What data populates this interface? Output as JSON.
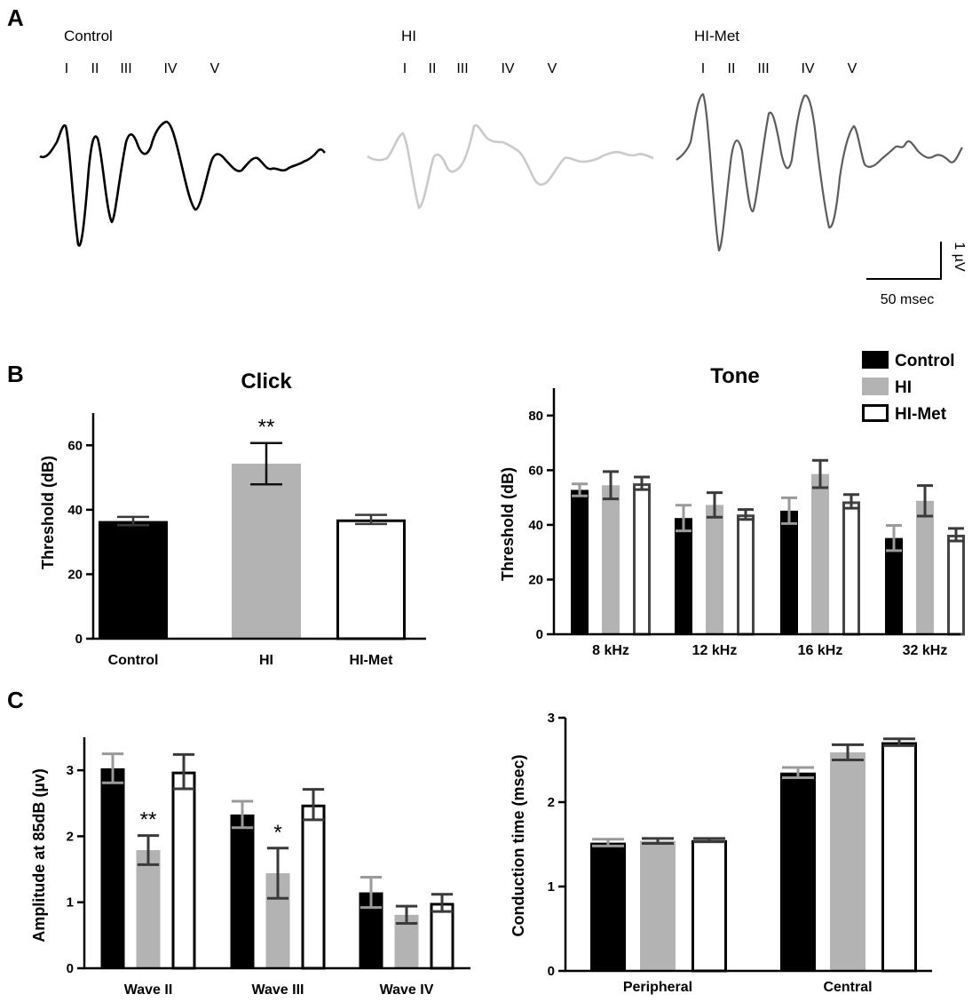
{
  "panels": {
    "a": "A",
    "b": "B",
    "c": "C"
  },
  "colors": {
    "control": "#000000",
    "hi": "#b3b3b3",
    "hi_met_edge": "#000000",
    "hi_met_edge_tone": "#454545",
    "err_dark": "#3a3a3a",
    "err_grey": "#9a9a9a"
  },
  "legend": [
    "Control",
    "HI",
    "HI-Met"
  ],
  "waveforms": {
    "wave_labels": [
      "I",
      "II",
      "III",
      "IV",
      "V"
    ],
    "traces": [
      {
        "name": "Control",
        "color": "#000000"
      },
      {
        "name": "HI",
        "color": "#c8c8c8"
      },
      {
        "name": "HI-Met",
        "color": "#5a5a5a"
      }
    ],
    "scale_bar": {
      "y_label": "1 µV",
      "x_label": "50 msec"
    }
  },
  "chart_data": [
    {
      "id": "click",
      "type": "bar",
      "title": "Click",
      "ylabel": "Threshold (dB)",
      "ylim": [
        0,
        70
      ],
      "yticks": [
        0,
        20,
        40,
        60
      ],
      "categories": [
        "Control",
        "HI",
        "HI-Met"
      ],
      "values": [
        36.5,
        54.3,
        37.0
      ],
      "errors": [
        1.3,
        6.4,
        1.4
      ],
      "annotations": [
        "",
        "**",
        ""
      ]
    },
    {
      "id": "tone",
      "type": "bar",
      "title": "Tone",
      "ylabel": "Threshold (dB)",
      "ylim": [
        0,
        90
      ],
      "yticks": [
        0,
        20,
        40,
        60,
        80
      ],
      "categories": [
        "8 kHz",
        "12 kHz",
        "16 kHz",
        "32 kHz"
      ],
      "series": [
        {
          "name": "Control",
          "values": [
            52.8,
            42.5,
            45.2,
            35.2
          ],
          "errors": [
            2.2,
            4.7,
            4.7,
            4.6
          ]
        },
        {
          "name": "HI",
          "values": [
            54.5,
            47.3,
            58.6,
            48.8
          ],
          "errors": [
            5.0,
            4.5,
            5.0,
            5.6
          ]
        },
        {
          "name": "HI-Met",
          "values": [
            55.2,
            43.8,
            48.6,
            36.4
          ],
          "errors": [
            2.3,
            1.8,
            2.5,
            2.3
          ]
        }
      ]
    },
    {
      "id": "amplitude",
      "type": "bar",
      "title": "",
      "ylabel": "Amplitude at 85dB (µv)",
      "ylim": [
        0,
        3.5
      ],
      "yticks": [
        0,
        1,
        2,
        3
      ],
      "categories": [
        "Wave II",
        "Wave III",
        "Wave IV"
      ],
      "series": [
        {
          "name": "Control",
          "values": [
            3.03,
            2.33,
            1.15
          ],
          "errors": [
            0.22,
            0.2,
            0.23
          ]
        },
        {
          "name": "HI",
          "values": [
            1.79,
            1.44,
            0.81
          ],
          "errors": [
            0.22,
            0.38,
            0.13
          ]
        },
        {
          "name": "HI-Met",
          "values": [
            2.98,
            2.48,
            0.99
          ],
          "errors": [
            0.26,
            0.23,
            0.13
          ]
        }
      ],
      "annotations": [
        [
          "",
          "**",
          ""
        ],
        [
          "",
          "*",
          ""
        ],
        [
          "",
          "",
          ""
        ]
      ]
    },
    {
      "id": "conduction",
      "type": "bar",
      "title": "",
      "ylabel": "Conduction time (msec)",
      "ylim": [
        0,
        3
      ],
      "yticks": [
        0,
        1,
        2,
        3
      ],
      "categories": [
        "Peripheral",
        "Central"
      ],
      "series": [
        {
          "name": "Control",
          "values": [
            1.52,
            2.35
          ],
          "errors": [
            0.04,
            0.06
          ]
        },
        {
          "name": "HI",
          "values": [
            1.54,
            2.59
          ],
          "errors": [
            0.03,
            0.09
          ]
        },
        {
          "name": "HI-Met",
          "values": [
            1.55,
            2.71
          ],
          "errors": [
            0.02,
            0.04
          ]
        }
      ]
    }
  ]
}
